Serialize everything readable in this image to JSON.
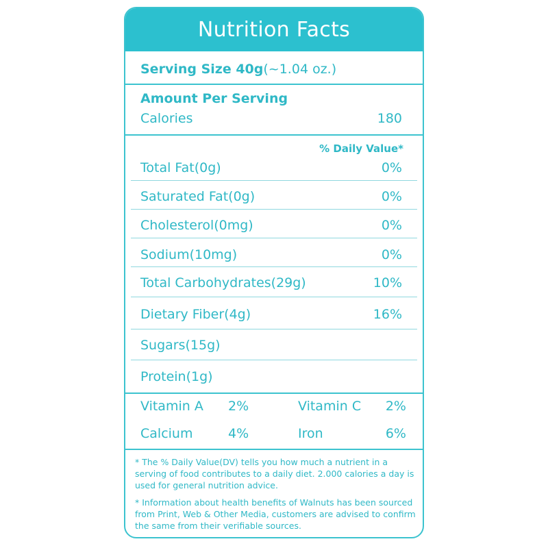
{
  "header": {
    "title": "Nutrition Facts"
  },
  "serving": {
    "label": "Serving Size 40g",
    "amount": "(~1.04 oz.)"
  },
  "amount_per_serving": "Amount Per Serving",
  "calories": {
    "label": "Calories",
    "value": "180"
  },
  "daily_value_header": "% Daily Value*",
  "nutrients": [
    {
      "label": "Total Fat(0g)",
      "value": "0%"
    },
    {
      "label": "Saturated Fat(0g)",
      "value": "0%"
    },
    {
      "label": "Cholesterol(0mg)",
      "value": "0%"
    },
    {
      "label": "Sodium(10mg)",
      "value": "0%"
    },
    {
      "label": "Total Carbohydrates(29g)",
      "value": "10%"
    },
    {
      "label": "Dietary Fiber(4g)",
      "value": "16%"
    },
    {
      "label": "Sugars(15g)",
      "value": ""
    },
    {
      "label": "Protein(1g)",
      "value": ""
    }
  ],
  "vitamins": [
    {
      "label": "Vitamin A",
      "value": "2%"
    },
    {
      "label": "Vitamin C",
      "value": "2%"
    },
    {
      "label": "Calcium",
      "value": "4%"
    },
    {
      "label": "Iron",
      "value": "6%"
    }
  ],
  "footnotes": [
    "* The % Daily Value(DV) tells you how much a nutrient in a serving of food contributes to a daily diet. 2.000 calories a day is used for general nutrition advice.",
    "* Information about health benefits of Walnuts has been sourced from Print, Web & Other Media, customers are advised to confirm the same from their verifiable sources."
  ],
  "colors": {
    "accent": "#2cc0cf",
    "text": "#2fb8c6",
    "border": "#3cc3cf"
  }
}
